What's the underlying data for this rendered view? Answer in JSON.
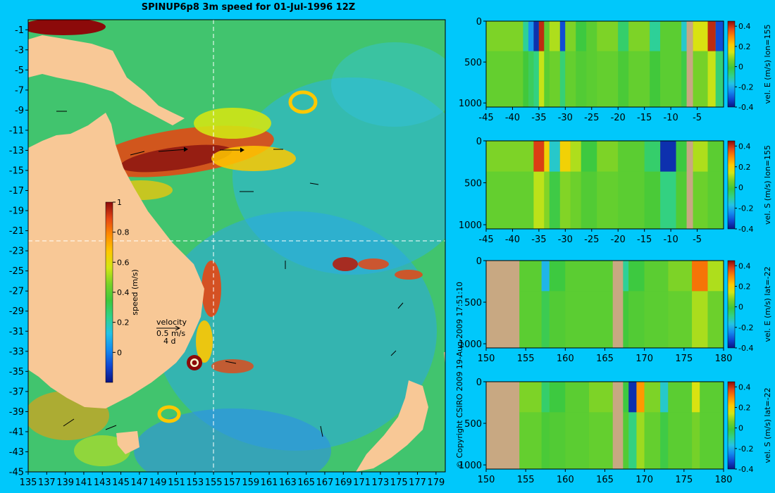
{
  "title": "SPINUP6p8 3m speed for 01-Jul-1996 12Z",
  "copyright": "© Copyright CSIRO 2009  19-Aug-2009 17:51:10",
  "colors": {
    "background": "#00c8fb",
    "land": "#f8c896",
    "section_land": "#c8a882",
    "colormap": [
      "#0a1482",
      "#1046d2",
      "#148cf0",
      "#23c3e6",
      "#2fd28a",
      "#3ec83c",
      "#78d228",
      "#d2e614",
      "#ffc800",
      "#ff8c00",
      "#e64614",
      "#8c0a0a"
    ]
  },
  "chart_data": [
    {
      "type": "heatmap",
      "name": "map",
      "title": "SPINUP6p8 3m speed for 01-Jul-1996 12Z",
      "x": {
        "ticks": [
          135,
          137,
          139,
          141,
          143,
          145,
          147,
          149,
          151,
          153,
          155,
          157,
          159,
          161,
          163,
          165,
          167,
          169,
          171,
          173,
          175,
          177,
          179
        ],
        "lim": [
          135,
          180
        ]
      },
      "y": {
        "ticks": [
          -1,
          -3,
          -5,
          -7,
          -9,
          -11,
          -13,
          -15,
          -17,
          -19,
          -21,
          -23,
          -25,
          -27,
          -29,
          -31,
          -33,
          -35,
          -37,
          -39,
          -41,
          -43,
          -45
        ],
        "lim": [
          -45,
          0
        ]
      },
      "crosshair": {
        "lon": 155,
        "lat": -22
      },
      "colorbar": {
        "label": "speed (m/s)",
        "ticks": [
          0,
          0.2,
          0.4,
          0.6,
          0.8,
          1
        ],
        "lim": [
          -0.2,
          1
        ]
      },
      "legend": {
        "title": "velocity",
        "speed": "0.5 m/s",
        "days": "4 d"
      }
    },
    {
      "type": "heatmap",
      "name": "section-1",
      "x": {
        "ticks": [
          -45,
          -40,
          -35,
          -30,
          -25,
          -20,
          -15,
          -10,
          -5
        ],
        "lim": [
          -45,
          0
        ]
      },
      "y": {
        "ticks": [
          0,
          500,
          1000
        ],
        "lim": [
          0,
          1050
        ],
        "inverted": true
      },
      "colorbar": {
        "label": "vel. E (m/s) lon=155",
        "ticks": [
          0.4,
          0.2,
          0,
          -0.2,
          -0.4
        ],
        "lim": [
          -0.4,
          0.45
        ]
      },
      "land_ranges": [
        [
          -7,
          -5.8
        ]
      ]
    },
    {
      "type": "heatmap",
      "name": "section-2",
      "x": {
        "ticks": [
          -45,
          -40,
          -35,
          -30,
          -25,
          -20,
          -15,
          -10,
          -5
        ],
        "lim": [
          -45,
          0
        ]
      },
      "y": {
        "ticks": [
          0,
          500,
          1000
        ],
        "lim": [
          0,
          1050
        ],
        "inverted": true
      },
      "colorbar": {
        "label": "vel. S (m/s) lon=155",
        "ticks": [
          0.4,
          0.2,
          0,
          -0.2,
          -0.4
        ],
        "lim": [
          -0.4,
          0.45
        ]
      },
      "land_ranges": [
        [
          -7,
          -5.8
        ]
      ]
    },
    {
      "type": "heatmap",
      "name": "section-3",
      "x": {
        "ticks": [
          150,
          155,
          160,
          165,
          170,
          175,
          180
        ],
        "lim": [
          150,
          180
        ]
      },
      "y": {
        "ticks": [
          0,
          500,
          1000
        ],
        "lim": [
          0,
          1050
        ],
        "inverted": true
      },
      "colorbar": {
        "label": "vel. E (m/s) lat=-22",
        "ticks": [
          0.4,
          0.2,
          0,
          -0.2,
          -0.4
        ],
        "lim": [
          -0.4,
          0.45
        ]
      },
      "land_ranges": [
        [
          150,
          154.2
        ],
        [
          166,
          167.3
        ]
      ]
    },
    {
      "type": "heatmap",
      "name": "section-4",
      "x": {
        "ticks": [
          150,
          155,
          160,
          165,
          170,
          175,
          180
        ],
        "lim": [
          150,
          180
        ]
      },
      "y": {
        "ticks": [
          0,
          500,
          1000
        ],
        "lim": [
          0,
          1050
        ],
        "inverted": true
      },
      "colorbar": {
        "label": "vel. S (m/s) lat=-22",
        "ticks": [
          0.4,
          0.2,
          0,
          -0.2,
          -0.4
        ],
        "lim": [
          -0.4,
          0.45
        ]
      },
      "land_ranges": [
        [
          150,
          154.2
        ],
        [
          166,
          167.3
        ]
      ]
    }
  ]
}
